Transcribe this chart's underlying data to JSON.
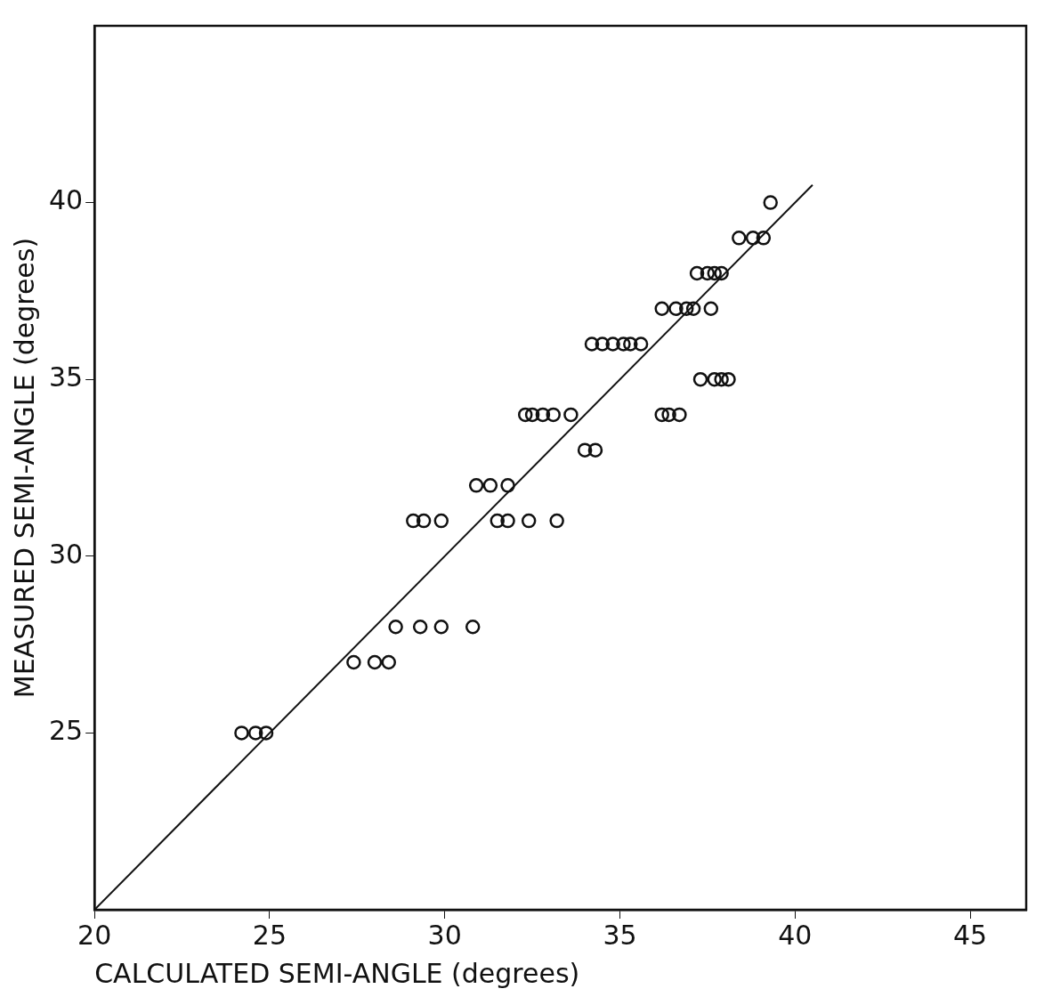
{
  "chart_data": {
    "type": "scatter",
    "xlabel": "CALCULATED SEMI-ANGLE (degrees)",
    "ylabel": "MEASURED SEMI-ANGLE (degrees)",
    "xlim": [
      20,
      46.6
    ],
    "ylim": [
      20,
      45
    ],
    "xticks": [
      20,
      25,
      30,
      35,
      40,
      45
    ],
    "yticks": [
      25,
      30,
      35,
      40
    ],
    "grid": false,
    "legend": false,
    "marker": "circle",
    "series": [
      {
        "color": "#111111",
        "x": [
          24.2,
          24.6,
          24.9,
          27.4,
          28.0,
          28.4,
          28.6,
          29.3,
          29.9,
          30.8,
          29.1,
          29.4,
          29.9,
          31.5,
          31.8,
          32.4,
          33.2,
          30.9,
          31.3,
          31.8,
          34.0,
          34.3,
          32.3,
          32.5,
          32.8,
          33.1,
          33.6,
          36.2,
          36.4,
          36.7,
          37.3,
          37.7,
          37.9,
          38.1,
          34.2,
          34.5,
          34.8,
          35.1,
          35.3,
          35.6,
          36.2,
          36.6,
          36.9,
          37.1,
          37.6,
          37.2,
          37.5,
          37.7,
          37.9,
          38.4,
          38.8,
          39.1,
          39.3
        ],
        "values": [
          25,
          25,
          25,
          27,
          27,
          27,
          28,
          28,
          28,
          28,
          31,
          31,
          31,
          31,
          31,
          31,
          31,
          32,
          32,
          32,
          33,
          33,
          34,
          34,
          34,
          34,
          34,
          34,
          34,
          34,
          35,
          35,
          35,
          35,
          36,
          36,
          36,
          36,
          36,
          36,
          37,
          37,
          37,
          37,
          37,
          38,
          38,
          38,
          38,
          39,
          39,
          39,
          40
        ]
      },
      {
        "type": "line",
        "color": "#111111",
        "marker": "none",
        "line_style": "solid",
        "x": [
          20,
          40.5
        ],
        "values": [
          20,
          40.5
        ]
      }
    ]
  }
}
